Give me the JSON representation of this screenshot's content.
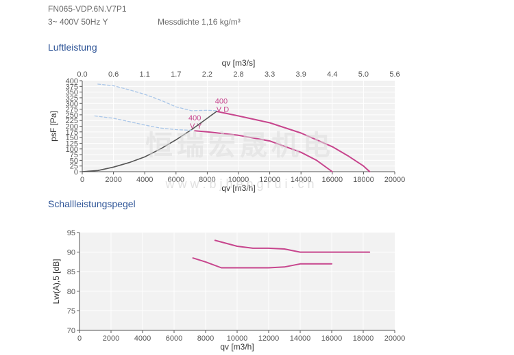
{
  "header": {
    "model": "FN065-VDP.6N.V7P1",
    "voltage": "3~ 400V 50Hz Y",
    "density": "Messdichte 1,16 kg/m³"
  },
  "sections": {
    "air": "Luftleistung",
    "sound": "Schallleistungspegel"
  },
  "watermark": {
    "cn": "恒瑞宏晟机电",
    "url": "w w w . b j h e n g r u i . c n"
  },
  "colors": {
    "plot_bg": "#f2f2f2",
    "grid": "#ffffff",
    "axis": "#555555",
    "curve": "#c7458d",
    "system_line": "#555555",
    "dashed": "#a9c6e8",
    "section_title": "#2f5597"
  },
  "chart_data": [
    {
      "type": "line",
      "xlabel": "qv [m3/h]",
      "ylabel": "psF [Pa]",
      "x2label": "qv [m3/s]",
      "xlim": [
        0,
        20000
      ],
      "ylim": [
        0,
        400
      ],
      "xticks": [
        "0",
        "2000",
        "4000",
        "6000",
        "8000",
        "10000",
        "12000",
        "14000",
        "16000",
        "18000",
        "20000"
      ],
      "yticks": [
        "0",
        "25",
        "50",
        "75",
        "100",
        "125",
        "150",
        "175",
        "200",
        "225",
        "250",
        "275",
        "300",
        "325",
        "350",
        "375",
        "400"
      ],
      "x2ticks": [
        "0.0",
        "0.6",
        "1.1",
        "1.7",
        "2.2",
        "2.8",
        "3.3",
        "3.9",
        "4.4",
        "5.0",
        "5.6"
      ],
      "grid": true,
      "series": [
        {
          "name": "400 V D",
          "label_lines": [
            "400",
            "V D"
          ],
          "label_at": [
            8500,
            300
          ],
          "style": "solid",
          "x": [
            8600,
            10000,
            12000,
            14000,
            16000,
            17000,
            18000,
            18400
          ],
          "y": [
            265,
            245,
            215,
            170,
            110,
            70,
            25,
            0
          ]
        },
        {
          "name": "400 V Y",
          "label_lines": [
            "400",
            "V Y"
          ],
          "label_at": [
            6800,
            225
          ],
          "style": "solid",
          "x": [
            7200,
            8000,
            10000,
            12000,
            14000,
            15000,
            16000
          ],
          "y": [
            180,
            175,
            160,
            135,
            85,
            50,
            0
          ]
        },
        {
          "style": "system",
          "x": [
            0,
            1000,
            2000,
            3000,
            4000,
            5000,
            6000,
            7000,
            8000,
            8600
          ],
          "y": [
            0,
            5,
            20,
            40,
            65,
            100,
            140,
            185,
            235,
            265
          ]
        },
        {
          "style": "dashed",
          "x": [
            1000,
            2000,
            3000,
            4000,
            5000,
            6000,
            7000,
            8000,
            8600
          ],
          "y": [
            385,
            378,
            360,
            340,
            315,
            285,
            268,
            270,
            268
          ]
        },
        {
          "style": "dashed",
          "x": [
            800,
            2000,
            3000,
            4000,
            5000,
            6000,
            7000
          ],
          "y": [
            245,
            235,
            220,
            205,
            192,
            185,
            182
          ]
        }
      ]
    },
    {
      "type": "line",
      "xlabel": "qv [m3/h]",
      "ylabel": "Lw(A),5 [dB]",
      "xlim": [
        0,
        20000
      ],
      "ylim": [
        70,
        95
      ],
      "xticks": [
        "0",
        "2000",
        "4000",
        "6000",
        "8000",
        "10000",
        "12000",
        "14000",
        "16000",
        "18000",
        "20000"
      ],
      "yticks": [
        "70",
        "75",
        "80",
        "85",
        "90",
        "95"
      ],
      "grid": true,
      "series": [
        {
          "x": [
            8600,
            10000,
            11000,
            12000,
            13000,
            14000,
            14500,
            16000,
            18000,
            18400
          ],
          "y": [
            93,
            91.5,
            91,
            91,
            90.8,
            90,
            90,
            90,
            90,
            90
          ]
        },
        {
          "x": [
            7200,
            8000,
            9000,
            10000,
            12000,
            13000,
            14000,
            15000,
            16000
          ],
          "y": [
            88.5,
            87.5,
            86,
            86,
            86,
            86.2,
            87,
            87,
            87
          ]
        }
      ]
    }
  ]
}
